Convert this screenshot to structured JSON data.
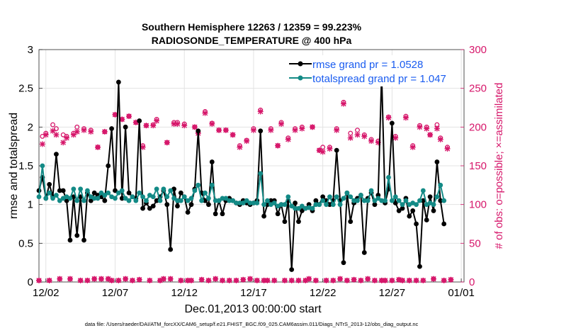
{
  "chart_data": {
    "type": "line",
    "title": "Southern Hemisphere 12263 / 12359 = 99.223%",
    "subtitle": "RADIOSONDE_TEMPERATURE @ 400 hPa",
    "xlabel": "Dec.01,2013 00:00:00 start",
    "ylabel": "rmse and totalspread",
    "y2label": "# of obs: o=possible; ×=assimilated",
    "footnote": "data file: /Users/raeder/DAI/ATM_forcXX/CAM6_setup/f.e21.FHIST_BGC.f09_025.CAM6assim.011/Diags_NTrS_2013-12/obs_diag_output.nc",
    "x_ticks": [
      {
        "day": 2,
        "label": "12/02"
      },
      {
        "day": 7,
        "label": "12/07"
      },
      {
        "day": 12,
        "label": "12/12"
      },
      {
        "day": 17,
        "label": "12/17"
      },
      {
        "day": 22,
        "label": "12/22"
      },
      {
        "day": 27,
        "label": "12/27"
      },
      {
        "day": 32,
        "label": "01/01"
      }
    ],
    "xlim": [
      1.5,
      32.2
    ],
    "ylim": [
      0,
      3
    ],
    "y_ticks": [
      "0",
      "0.5",
      "1",
      "1.5",
      "2",
      "2.5",
      "3"
    ],
    "y2lim": [
      0,
      300
    ],
    "y2_ticks": [
      "0",
      "50",
      "100",
      "150",
      "200",
      "250",
      "300"
    ],
    "legend_location": "top-right",
    "grid": true,
    "colors": {
      "rmse": "#000000",
      "spread": "#138a86",
      "obs": "#d6166a"
    },
    "series": [
      {
        "name": "rmse grand pr = 1.0528",
        "x0": 1.5,
        "dx": 0.25,
        "values": [
          1.18,
          1.35,
          1.08,
          1.26,
          1.1,
          1.65,
          1.18,
          1.18,
          1.05,
          0.54,
          1.1,
          0.6,
          1.1,
          0.54,
          1.15,
          1.05,
          1.15,
          1.12,
          1.1,
          1.05,
          1.5,
          1.98,
          1.18,
          2.58,
          1.08,
          2.0,
          1.15,
          1.1,
          1.08,
          2.08,
          0.95,
          1.02,
          0.95,
          0.98,
          1.05,
          1.1,
          1.18,
          1.0,
          0.42,
          1.2,
          0.98,
          1.15,
          1.1,
          0.9,
          1.0,
          1.2,
          1.95,
          1.15,
          1.05,
          1.0,
          1.55,
          0.88,
          1.05,
          0.88,
          1.05,
          1.08,
          1.05,
          1.02,
          1.0,
          1.05,
          1.02,
          1.0,
          1.02,
          1.05,
          1.95,
          0.85,
          1.0,
          1.05,
          1.05,
          0.88,
          1.0,
          0.78,
          1.05,
          0.16,
          1.02,
          0.78,
          0.92,
          0.95,
          1.0,
          0.92,
          1.05,
          1.0,
          1.1,
          1.05,
          1.0,
          1.05,
          1.7,
          1.05,
          0.25,
          1.15,
          0.78,
          1.02,
          1.08,
          1.12,
          0.38,
          1.08,
          1.15,
          1.0,
          1.12,
          2.68,
          1.02,
          1.2,
          2.05,
          1.02,
          0.92,
          0.95,
          1.08,
          0.85,
          0.92,
          0.75,
          0.2,
          1.05,
          0.8,
          1.1,
          0.92,
          1.55,
          1.05,
          0.75
        ]
      },
      {
        "name": "totalspread grand pr = 1.047",
        "x0": 1.5,
        "dx": 0.25,
        "values": [
          1.1,
          1.5,
          1.08,
          1.15,
          1.08,
          1.12,
          1.05,
          1.08,
          1.1,
          1.08,
          1.2,
          1.05,
          1.2,
          1.05,
          1.18,
          1.1,
          1.08,
          1.08,
          1.15,
          1.12,
          1.15,
          1.1,
          1.08,
          1.15,
          1.18,
          1.08,
          1.05,
          1.1,
          1.05,
          1.15,
          1.1,
          1.05,
          1.12,
          1.1,
          1.2,
          1.05,
          1.2,
          1.1,
          1.18,
          1.08,
          1.05,
          1.05,
          1.1,
          1.05,
          1.08,
          1.18,
          1.25,
          1.05,
          1.15,
          1.08,
          1.25,
          1.05,
          1.05,
          1.08,
          1.08,
          1.05,
          1.05,
          1.02,
          1.02,
          1.02,
          1.05,
          1.02,
          1.02,
          1.02,
          1.4,
          1.0,
          1.05,
          1.0,
          1.02,
          0.98,
          1.0,
          1.0,
          1.1,
          0.98,
          0.95,
          0.95,
          0.98,
          0.95,
          0.96,
          0.95,
          1.0,
          1.0,
          1.05,
          1.0,
          1.1,
          1.0,
          1.1,
          1.0,
          1.08,
          1.15,
          1.1,
          1.05,
          1.05,
          1.12,
          1.05,
          1.05,
          1.18,
          1.05,
          1.08,
          1.05,
          1.05,
          1.35,
          1.05,
          1.1,
          1.05,
          1.0,
          1.05,
          1.0,
          1.02,
          1.0,
          1.05,
          1.18,
          1.0,
          1.02,
          1.0,
          1.1,
          1.25,
          1.05
        ]
      },
      {
        "name": "obs possible",
        "x0": 1.5,
        "dx": 0.25,
        "axis": "y2",
        "values": [
          2,
          188,
          192,
          2,
          203,
          198,
          4,
          190,
          188,
          4,
          192,
          200,
          2,
          198,
          2,
          196,
          4,
          174,
          4,
          194,
          4,
          2,
          216,
          2,
          210,
          4,
          214,
          2,
          206,
          3,
          176,
          202,
          2,
          203,
          210,
          2,
          4,
          180,
          4,
          206,
          206,
          2,
          204,
          2,
          2,
          200,
          193,
          3,
          220,
          2,
          205,
          4,
          196,
          2,
          196,
          2,
          190,
          2,
          176,
          3,
          183,
          4,
          198,
          2,
          222,
          2,
          2,
          198,
          2,
          176,
          206,
          2,
          186,
          2,
          198,
          2,
          200,
          2,
          4,
          200,
          2,
          170,
          174,
          2,
          174,
          2,
          198,
          4,
          232,
          2,
          192,
          3,
          196,
          2,
          190,
          4,
          184,
          2,
          182,
          2,
          2,
          213,
          2,
          188,
          3,
          2,
          214,
          2,
          176,
          2,
          202,
          2,
          200,
          190,
          4,
          203,
          186,
          2,
          174,
          3
        ]
      },
      {
        "name": "obs assimilated",
        "x0": 1.5,
        "dx": 0.25,
        "axis": "y2",
        "values": [
          2,
          178,
          190,
          2,
          195,
          190,
          4,
          180,
          186,
          4,
          190,
          194,
          2,
          196,
          2,
          194,
          4,
          174,
          4,
          194,
          4,
          2,
          216,
          2,
          210,
          4,
          214,
          2,
          206,
          3,
          174,
          202,
          2,
          202,
          208,
          2,
          4,
          180,
          4,
          204,
          204,
          2,
          202,
          2,
          2,
          200,
          192,
          3,
          218,
          2,
          204,
          4,
          196,
          2,
          196,
          2,
          190,
          2,
          174,
          3,
          182,
          4,
          196,
          2,
          220,
          2,
          2,
          196,
          2,
          176,
          204,
          2,
          184,
          2,
          196,
          2,
          198,
          2,
          4,
          200,
          2,
          170,
          168,
          2,
          172,
          2,
          196,
          4,
          230,
          2,
          186,
          3,
          190,
          2,
          188,
          4,
          182,
          2,
          180,
          2,
          2,
          212,
          2,
          186,
          3,
          2,
          212,
          2,
          174,
          2,
          200,
          2,
          198,
          190,
          4,
          198,
          184,
          2,
          172,
          3
        ]
      }
    ]
  }
}
